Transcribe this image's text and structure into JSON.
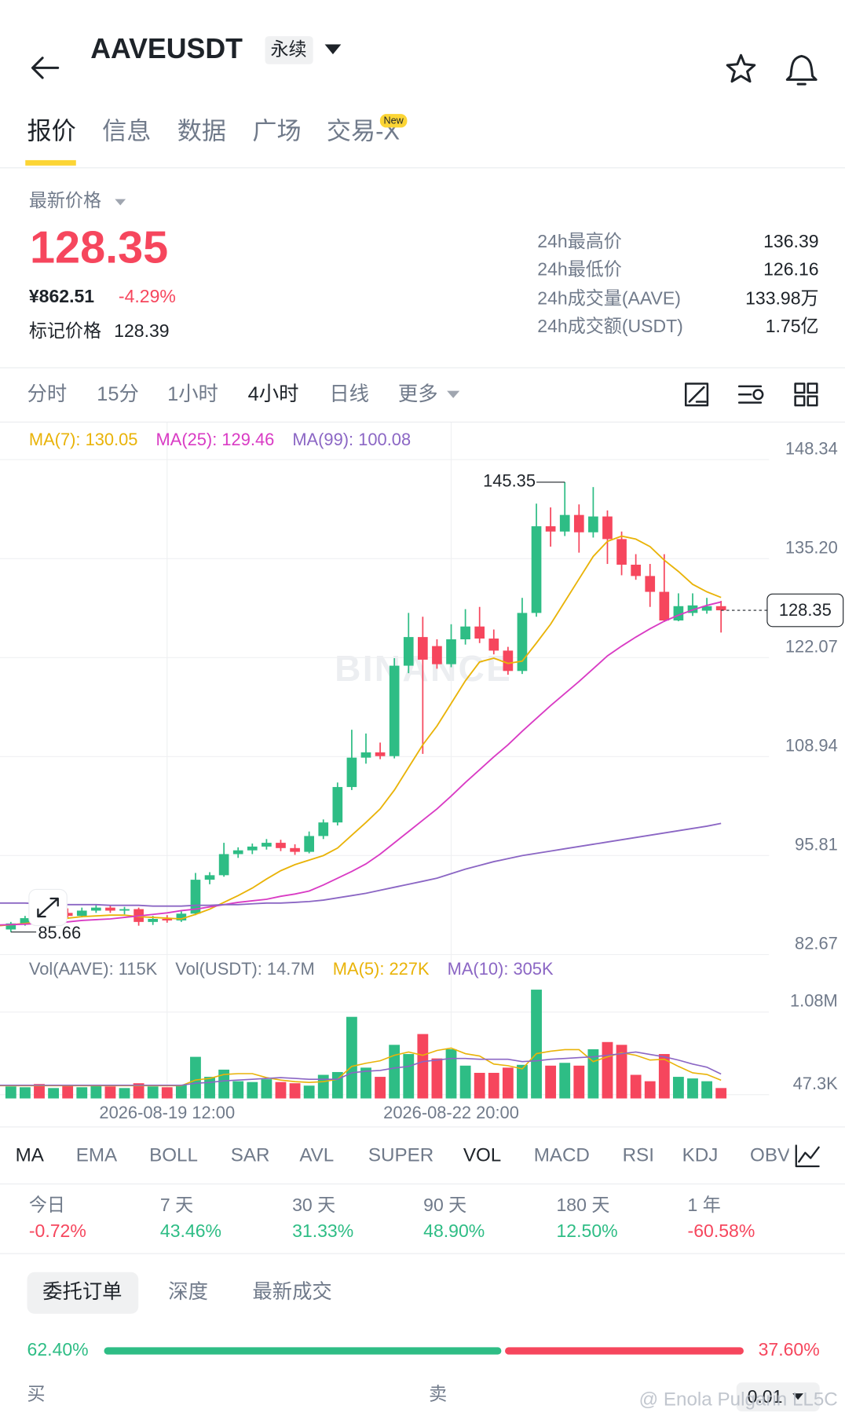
{
  "header": {
    "symbol": "AAVEUSDT",
    "contract": "永续"
  },
  "tabs": {
    "items": [
      "报价",
      "信息",
      "数据",
      "广场",
      "交易-X"
    ],
    "badge": "New"
  },
  "price": {
    "label": "最新价格",
    "last": "128.35",
    "cny": "¥862.51",
    "change": "-4.29%",
    "mark_label": "标记价格",
    "mark": "128.39"
  },
  "stats": [
    {
      "label": "24h最高价",
      "value": "136.39"
    },
    {
      "label": "24h最低价",
      "value": "126.16"
    },
    {
      "label": "24h成交量(AAVE)",
      "value": "133.98万"
    },
    {
      "label": "24h成交额(USDT)",
      "value": "1.75亿"
    }
  ],
  "intervals": [
    "分时",
    "15分",
    "1小时",
    "4小时",
    "日线",
    "更多"
  ],
  "chart_data": [
    {
      "type": "candlestick",
      "categories": [
        null,
        null,
        null,
        null,
        null,
        null,
        null,
        null,
        null,
        null,
        null,
        "2026-08-19 12:00",
        null,
        null,
        null,
        null,
        null,
        null,
        null,
        null,
        null,
        null,
        null,
        null,
        null,
        null,
        null,
        null,
        null,
        null,
        null,
        "2026-08-22 20:00",
        null,
        null,
        null,
        null,
        null,
        null,
        null,
        null,
        null,
        null,
        null,
        null,
        null,
        null,
        null,
        null,
        null,
        null,
        null
      ],
      "open": [
        86.0,
        86.8,
        87.5,
        87.1,
        88.2,
        87.8,
        88.5,
        88.9,
        88.5,
        88.7,
        87.0,
        87.4,
        87.2,
        88.1,
        92.6,
        93.2,
        96.0,
        96.5,
        97.0,
        97.5,
        96.8,
        96.3,
        98.4,
        100.2,
        104.9,
        108.8,
        109.5,
        109.0,
        121.0,
        124.8,
        123.6,
        121.2,
        124.5,
        126.2,
        124.6,
        123.0,
        120.3,
        128.0,
        139.5,
        138.8,
        141.0,
        138.7,
        140.8,
        137.8,
        134.4,
        132.9,
        130.8,
        127.0,
        128.0,
        128.3,
        128.9
      ],
      "high": [
        87.0,
        87.8,
        88.5,
        88.6,
        88.8,
        88.9,
        89.3,
        89.2,
        89.0,
        88.9,
        87.8,
        87.9,
        88.4,
        93.5,
        93.6,
        97.5,
        96.9,
        97.4,
        98.0,
        97.9,
        97.3,
        99.0,
        100.6,
        105.5,
        112.5,
        112.0,
        110.8,
        122.0,
        128.0,
        127.5,
        124.5,
        126.5,
        128.5,
        128.8,
        125.8,
        123.5,
        130.0,
        142.5,
        142.0,
        145.35,
        142.4,
        144.7,
        141.6,
        138.8,
        135.8,
        134.5,
        135.8,
        130.6,
        130.6,
        130.0,
        129.6
      ],
      "low": [
        85.66,
        86.5,
        86.9,
        86.9,
        87.5,
        87.6,
        88.2,
        88.2,
        88.0,
        86.5,
        86.6,
        86.9,
        87.0,
        87.9,
        92.0,
        93.0,
        95.5,
        96.0,
        96.6,
        96.4,
        95.9,
        96.1,
        98.0,
        99.8,
        104.5,
        108.0,
        108.6,
        108.7,
        120.0,
        109.3,
        120.6,
        120.8,
        123.8,
        124.0,
        122.5,
        119.8,
        119.9,
        127.5,
        136.8,
        138.2,
        136.0,
        138.0,
        134.5,
        133.0,
        132.4,
        128.8,
        126.8,
        126.9,
        127.6,
        127.9,
        125.4
      ],
      "close": [
        86.8,
        87.5,
        87.1,
        88.2,
        87.8,
        88.5,
        88.9,
        88.5,
        88.7,
        87.0,
        87.4,
        87.2,
        88.1,
        92.6,
        93.2,
        96.0,
        96.5,
        97.0,
        97.5,
        96.8,
        96.3,
        98.4,
        100.2,
        104.9,
        108.8,
        109.5,
        109.0,
        121.0,
        124.8,
        121.8,
        121.2,
        124.5,
        126.2,
        124.6,
        123.0,
        120.3,
        128.0,
        139.5,
        138.8,
        141.0,
        138.7,
        140.8,
        137.8,
        134.4,
        132.9,
        130.8,
        127.0,
        128.9,
        129.0,
        128.9,
        128.35
      ],
      "up_color": "#2ebd85",
      "down_color": "#f6465d",
      "ylim": [
        82.67,
        148.34
      ],
      "yticks": [
        148.34,
        {
          "value": 135.2,
          "label": "135.20"
        },
        122.07,
        108.94,
        95.81,
        82.67
      ],
      "grid": true,
      "series": [
        {
          "name": "MA(7): 130.05",
          "color": "#e9b308",
          "values": [
            86.5,
            86.8,
            87.0,
            87.2,
            87.5,
            87.7,
            87.8,
            87.9,
            87.9,
            87.7,
            87.6,
            87.5,
            87.4,
            88.0,
            88.7,
            89.6,
            90.5,
            91.5,
            92.7,
            93.8,
            94.6,
            95.2,
            95.8,
            96.8,
            98.5,
            100.2,
            102.0,
            104.5,
            107.5,
            110.5,
            113.0,
            116.0,
            119.0,
            121.5,
            122.0,
            121.3,
            121.6,
            124.0,
            126.5,
            129.5,
            132.5,
            135.5,
            137.5,
            138.2,
            137.8,
            136.8,
            135.0,
            133.5,
            131.8,
            130.8,
            130.05
          ]
        },
        {
          "name": "MA(25): 129.46",
          "color": "#d93bc4",
          "values": [
            86.6,
            86.7,
            86.8,
            86.9,
            87.0,
            87.2,
            87.3,
            87.4,
            87.6,
            87.8,
            88.0,
            88.2,
            88.5,
            88.7,
            89.0,
            89.3,
            89.6,
            89.8,
            90.0,
            90.4,
            90.7,
            91.1,
            91.9,
            92.8,
            93.7,
            94.7,
            96.0,
            97.5,
            99.0,
            100.5,
            102.0,
            103.7,
            105.5,
            107.2,
            108.9,
            110.5,
            112.3,
            114.0,
            115.7,
            117.3,
            118.9,
            120.6,
            122.3,
            123.6,
            124.8,
            125.9,
            126.9,
            127.7,
            128.4,
            129.0,
            129.46
          ]
        },
        {
          "name": "MA(99): 100.08",
          "color": "#8b66c4",
          "values": [
            89.5,
            89.5,
            89.4,
            89.4,
            89.3,
            89.3,
            89.3,
            89.2,
            89.2,
            89.2,
            89.1,
            89.1,
            89.1,
            89.2,
            89.2,
            89.3,
            89.3,
            89.4,
            89.5,
            89.5,
            89.6,
            89.7,
            89.9,
            90.2,
            90.5,
            90.8,
            91.2,
            91.6,
            92.0,
            92.4,
            92.8,
            93.4,
            94.0,
            94.5,
            95.0,
            95.4,
            95.8,
            96.1,
            96.4,
            96.7,
            97.0,
            97.3,
            97.6,
            97.9,
            98.2,
            98.5,
            98.8,
            99.1,
            99.4,
            99.7,
            100.08
          ]
        }
      ],
      "last_price": 128.35,
      "annotations": {
        "high": 145.35,
        "low": 85.66
      },
      "watermark": "BINANCE"
    },
    {
      "type": "bar",
      "legend": [
        "Vol(AAVE): 115K",
        "Vol(USDT): 14.7M"
      ],
      "values": [
        150000,
        140000,
        180000,
        130000,
        170000,
        140000,
        160000,
        150000,
        130000,
        190000,
        150000,
        140000,
        170000,
        520000,
        270000,
        360000,
        215000,
        205000,
        240000,
        205000,
        190000,
        160000,
        295000,
        330000,
        1020000,
        385000,
        270000,
        670000,
        555000,
        805000,
        500000,
        615000,
        410000,
        320000,
        320000,
        385000,
        420000,
        1360000,
        410000,
        445000,
        410000,
        615000,
        705000,
        670000,
        295000,
        215000,
        555000,
        270000,
        250000,
        215000,
        130000
      ],
      "ylim": [
        0,
        1380000
      ],
      "yticks": [
        {
          "value": 47300,
          "label": "47.3K"
        },
        {
          "value": 1080000,
          "label": "1.08M"
        }
      ],
      "series": [
        {
          "name": "MA(5): 227K",
          "color": "#e9b308",
          "values": [
            160000,
            160000,
            160000,
            160000,
            160000,
            160000,
            160000,
            160000,
            160000,
            160000,
            160000,
            160000,
            160000,
            230000,
            250000,
            300000,
            310000,
            310000,
            260000,
            230000,
            210000,
            200000,
            210000,
            240000,
            400000,
            440000,
            470000,
            540000,
            580000,
            540000,
            600000,
            630000,
            560000,
            530000,
            430000,
            410000,
            370000,
            560000,
            590000,
            610000,
            610000,
            460000,
            520000,
            570000,
            540000,
            480000,
            490000,
            400000,
            320000,
            300000,
            227000
          ]
        },
        {
          "name": "MA(10): 305K",
          "color": "#8b66c4",
          "values": [
            165000,
            165000,
            165000,
            165000,
            165000,
            165000,
            165000,
            165000,
            165000,
            165000,
            165000,
            165000,
            165000,
            190000,
            200000,
            220000,
            230000,
            240000,
            250000,
            260000,
            250000,
            240000,
            240000,
            240000,
            320000,
            340000,
            350000,
            380000,
            400000,
            460000,
            480000,
            500000,
            500000,
            490000,
            490000,
            490000,
            460000,
            470000,
            490000,
            500000,
            510000,
            520000,
            540000,
            560000,
            580000,
            550000,
            520000,
            480000,
            430000,
            390000,
            305000
          ]
        }
      ]
    }
  ],
  "indicators": [
    "MA",
    "EMA",
    "BOLL",
    "SAR",
    "AVL",
    "SUPER",
    "VOL",
    "MACD",
    "RSI",
    "KDJ",
    "OBV"
  ],
  "performance": [
    {
      "label": "今日",
      "value": "-0.72%"
    },
    {
      "label": "7 天",
      "value": "43.46%"
    },
    {
      "label": "30 天",
      "value": "31.33%"
    },
    {
      "label": "90 天",
      "value": "48.90%"
    },
    {
      "label": "180 天",
      "value": "12.50%"
    },
    {
      "label": "1 年",
      "value": "-60.58%"
    }
  ],
  "order_tabs": [
    "委托订单",
    "深度",
    "最新成交"
  ],
  "depth": {
    "buy": {
      "value": 62.4,
      "label": "62.40%"
    },
    "sell": {
      "value": 37.6,
      "label": "37.60%"
    },
    "buy_color": "#2ebd85",
    "sell_color": "#f6465d"
  },
  "book": {
    "buy": "买",
    "sell": "卖",
    "precision": "0.01"
  },
  "watermark": "@ Enola Pulgarin LL5C"
}
